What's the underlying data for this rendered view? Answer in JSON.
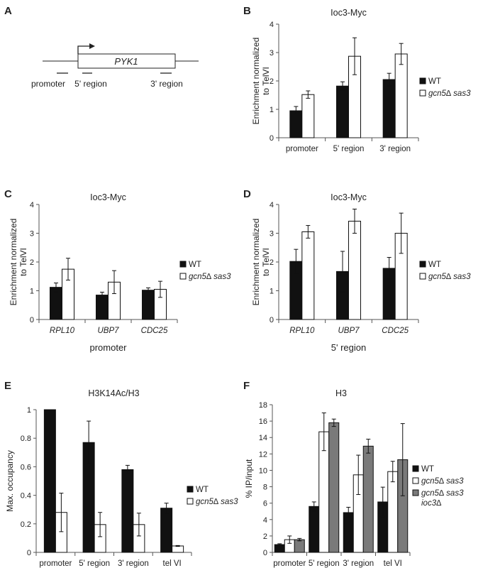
{
  "panels": [
    {
      "letter": "A"
    },
    {
      "letter": "B"
    },
    {
      "letter": "C"
    },
    {
      "letter": "D"
    },
    {
      "letter": "E"
    },
    {
      "letter": "F"
    }
  ],
  "schematic": {
    "gene_label": "PYK1",
    "region_labels": [
      "promoter",
      "5' region",
      "3' region"
    ]
  },
  "colors": {
    "WT": "#111111",
    "gcn5_sas3": "#ffffff",
    "triple": "#7a7a7a",
    "axis": "#555555"
  },
  "chart_data": [
    {
      "id": "B",
      "type": "bar",
      "title": "Ioc3-Myc",
      "ylabel": [
        "Enrichment normalized",
        "to TelVI"
      ],
      "xlabel": "",
      "ylim": [
        0,
        4
      ],
      "yticks": [
        "0",
        "1",
        "2",
        "3",
        "4"
      ],
      "italic_categories": false,
      "categories": [
        "promoter",
        "5' region",
        "3' region"
      ],
      "series": [
        {
          "name": "WT",
          "key": "WT",
          "values": [
            0.95,
            1.82,
            2.05
          ],
          "errors": [
            0.15,
            0.15,
            0.22
          ]
        },
        {
          "name": "gcn5∆ sas3",
          "key": "gcn5_sas3",
          "values": [
            1.52,
            2.87,
            2.95
          ],
          "errors": [
            0.13,
            0.65,
            0.37
          ]
        }
      ],
      "legend": "right",
      "grid": false
    },
    {
      "id": "C",
      "type": "bar",
      "title": "Ioc3-Myc",
      "ylabel": [
        "Enrichment normalized",
        "to TelVI"
      ],
      "xlabel": "promoter",
      "ylim": [
        0,
        4
      ],
      "yticks": [
        "0",
        "1",
        "2",
        "3",
        "4"
      ],
      "italic_categories": true,
      "categories": [
        "RPL10",
        "UBP7",
        "CDC25"
      ],
      "series": [
        {
          "name": "WT",
          "key": "WT",
          "values": [
            1.12,
            0.85,
            1.02
          ],
          "errors": [
            0.15,
            0.1,
            0.08
          ]
        },
        {
          "name": "gcn5∆ sas3",
          "key": "gcn5_sas3",
          "values": [
            1.75,
            1.3,
            1.05
          ],
          "errors": [
            0.38,
            0.4,
            0.28
          ]
        }
      ],
      "legend": "right",
      "grid": false
    },
    {
      "id": "D",
      "type": "bar",
      "title": "Ioc3-Myc",
      "ylabel": [
        "Enrichment normalized",
        "to TelVI"
      ],
      "xlabel": "5' region",
      "ylim": [
        0,
        4
      ],
      "yticks": [
        "0",
        "1",
        "2",
        "3",
        "4"
      ],
      "italic_categories": true,
      "categories": [
        "RPL10",
        "UBP7",
        "CDC25"
      ],
      "series": [
        {
          "name": "WT",
          "key": "WT",
          "values": [
            2.02,
            1.67,
            1.78
          ],
          "errors": [
            0.42,
            0.7,
            0.38
          ]
        },
        {
          "name": "gcn5∆ sas3",
          "key": "gcn5_sas3",
          "values": [
            3.05,
            3.42,
            3.0
          ],
          "errors": [
            0.22,
            0.42,
            0.7
          ]
        }
      ],
      "legend": "right",
      "grid": false
    },
    {
      "id": "E",
      "type": "bar",
      "title": "H3K14Ac/H3",
      "ylabel": [
        "Max. occupancy"
      ],
      "xlabel": "",
      "ylim": [
        0,
        1
      ],
      "yticks": [
        "0",
        "0.2",
        "0.4",
        "0.6",
        "0.8",
        "1"
      ],
      "italic_categories": false,
      "categories": [
        "promoter",
        "5' region",
        "3' region",
        "tel VI"
      ],
      "series": [
        {
          "name": "WT",
          "key": "WT",
          "values": [
            1.0,
            0.77,
            0.58,
            0.31
          ],
          "errors": [
            0,
            0.15,
            0.03,
            0.035
          ]
        },
        {
          "name": "gcn5∆ sas3",
          "key": "gcn5_sas3",
          "values": [
            0.28,
            0.195,
            0.195,
            0.045
          ],
          "errors": [
            0.135,
            0.085,
            0.08,
            0.003
          ]
        }
      ],
      "legend": "right",
      "grid": false
    },
    {
      "id": "F",
      "type": "bar",
      "title": "H3",
      "ylabel": [
        "% IP/input"
      ],
      "xlabel": "",
      "ylim": [
        0,
        18
      ],
      "yticks": [
        "0",
        "2",
        "4",
        "6",
        "8",
        "10",
        "12",
        "14",
        "16",
        "18"
      ],
      "italic_categories": false,
      "categories": [
        "promoter",
        "5' region",
        "3' region",
        "tel VI"
      ],
      "series": [
        {
          "name": "WT",
          "key": "WT",
          "values": [
            0.95,
            5.6,
            4.85,
            6.15
          ],
          "errors": [
            0.1,
            0.55,
            0.65,
            1.8
          ]
        },
        {
          "name": "gcn5∆ sas3",
          "key": "gcn5_sas3",
          "values": [
            1.55,
            14.7,
            9.45,
            9.85
          ],
          "errors": [
            0.45,
            2.3,
            2.4,
            1.25
          ]
        },
        {
          "name": "gcn5∆ sas3 ioc3∆",
          "key": "triple",
          "values": [
            1.55,
            15.8,
            12.95,
            11.3
          ],
          "errors": [
            0.15,
            0.45,
            0.85,
            4.4
          ]
        }
      ],
      "legend": "right",
      "grid": false
    }
  ]
}
